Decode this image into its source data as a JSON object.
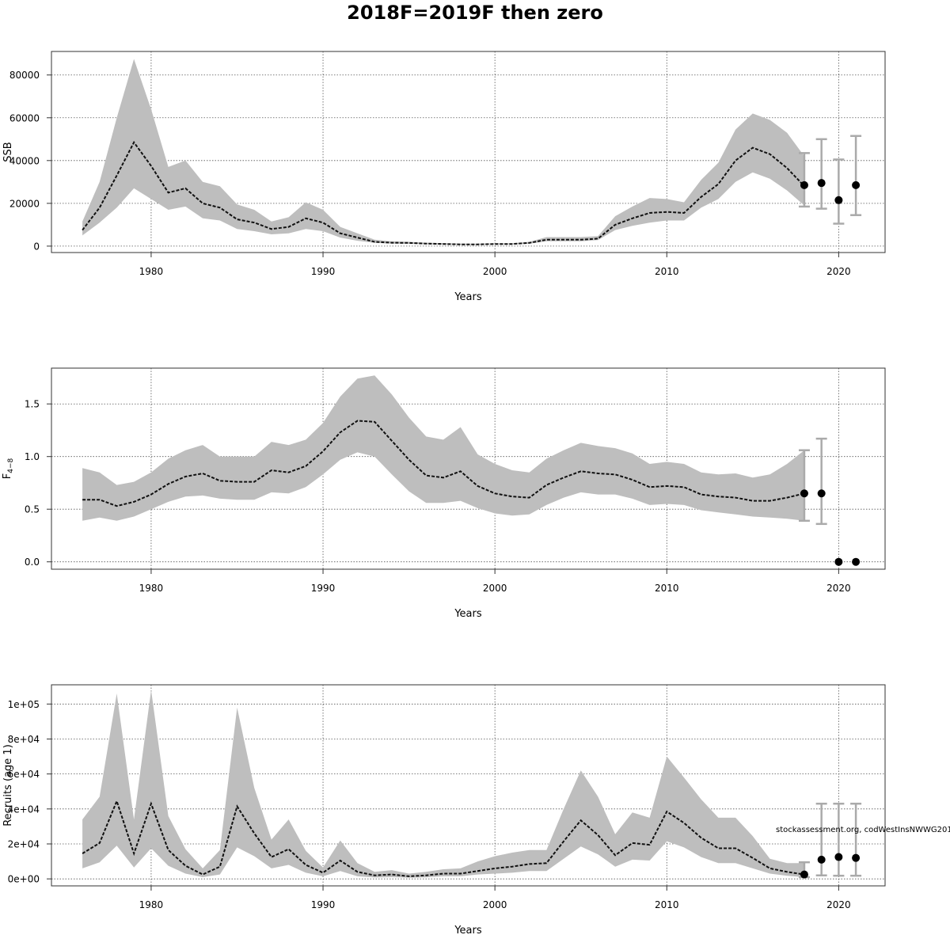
{
  "figure": {
    "title": "2018F=2019F then zero",
    "credit": "stockassessment.org, codWestInsNWWG201"
  },
  "chart_data": [
    {
      "type": "area",
      "name": "ssb",
      "title": "",
      "xlabel": "Years",
      "ylabel": "SSB",
      "xlim": [
        1974.2,
        2022.7
      ],
      "ylim": [
        -3000,
        91000
      ],
      "xticks": [
        1980,
        1990,
        2000,
        2010,
        2020
      ],
      "xtick_labels": [
        "1980",
        "1990",
        "2000",
        "2010",
        "2020"
      ],
      "yticks": [
        0,
        20000,
        40000,
        60000,
        80000
      ],
      "ytick_labels": [
        "0",
        "20000",
        "40000",
        "60000",
        "80000"
      ],
      "grid": true,
      "x": [
        1976,
        1977,
        1978,
        1979,
        1980,
        1981,
        1982,
        1983,
        1984,
        1985,
        1986,
        1987,
        1988,
        1989,
        1990,
        1991,
        1992,
        1993,
        1994,
        1995,
        1996,
        1997,
        1998,
        1999,
        2000,
        2001,
        2002,
        2003,
        2004,
        2005,
        2006,
        2007,
        2008,
        2009,
        2010,
        2011,
        2012,
        2013,
        2014,
        2015,
        2016,
        2017,
        2018
      ],
      "estimate": [
        7500,
        18000,
        33000,
        48500,
        37500,
        25000,
        27000,
        20000,
        18000,
        12500,
        11000,
        8000,
        9000,
        13000,
        11000,
        6000,
        4000,
        2000,
        1600,
        1500,
        1200,
        1000,
        800,
        800,
        1000,
        1000,
        1500,
        3000,
        3000,
        3000,
        3500,
        10000,
        13000,
        15500,
        16000,
        15500,
        23000,
        29000,
        40000,
        46000,
        43000,
        36500,
        28000
      ],
      "lower": [
        5000,
        11000,
        18000,
        27000,
        22000,
        17000,
        18500,
        13000,
        12000,
        8000,
        7000,
        5500,
        6000,
        8000,
        7000,
        4000,
        2500,
        1500,
        1200,
        1100,
        900,
        700,
        600,
        600,
        800,
        800,
        1100,
        2300,
        2300,
        2300,
        2800,
        7500,
        9500,
        11000,
        12000,
        12000,
        18000,
        22000,
        30000,
        34500,
        31500,
        26000,
        19000
      ],
      "upper": [
        11500,
        30000,
        60000,
        87500,
        64000,
        37000,
        40000,
        30000,
        28000,
        19500,
        17000,
        11500,
        13500,
        20500,
        17000,
        9000,
        6000,
        3000,
        2200,
        2000,
        1600,
        1400,
        1200,
        1100,
        1300,
        1300,
        2000,
        4200,
        4200,
        4200,
        4700,
        14000,
        18500,
        22500,
        22000,
        20500,
        31000,
        39000,
        54500,
        62000,
        59000,
        53000,
        42000
      ],
      "forecast": {
        "years": [
          2018,
          2019,
          2020,
          2021
        ],
        "median": [
          28500,
          29500,
          21500,
          28500
        ],
        "low": [
          18500,
          17500,
          10500,
          14500
        ],
        "high": [
          43500,
          50000,
          40500,
          51500
        ]
      }
    },
    {
      "type": "area",
      "name": "fbar",
      "title": "",
      "xlabel": "Years",
      "ylabel_main": "F",
      "ylabel_sub": "4−8",
      "xlim": [
        1974.2,
        2022.7
      ],
      "ylim": [
        -0.07,
        1.84
      ],
      "xticks": [
        1980,
        1990,
        2000,
        2010,
        2020
      ],
      "xtick_labels": [
        "1980",
        "1990",
        "2000",
        "2010",
        "2020"
      ],
      "yticks": [
        0,
        0.5,
        1,
        1.5
      ],
      "ytick_labels": [
        "0.0",
        "0.5",
        "1.0",
        "1.5"
      ],
      "grid": true,
      "x": [
        1976,
        1977,
        1978,
        1979,
        1980,
        1981,
        1982,
        1983,
        1984,
        1985,
        1986,
        1987,
        1988,
        1989,
        1990,
        1991,
        1992,
        1993,
        1994,
        1995,
        1996,
        1997,
        1998,
        1999,
        2000,
        2001,
        2002,
        2003,
        2004,
        2005,
        2006,
        2007,
        2008,
        2009,
        2010,
        2011,
        2012,
        2013,
        2014,
        2015,
        2016,
        2017,
        2018
      ],
      "estimate": [
        0.59,
        0.59,
        0.53,
        0.57,
        0.64,
        0.74,
        0.81,
        0.84,
        0.77,
        0.76,
        0.76,
        0.87,
        0.85,
        0.91,
        1.05,
        1.23,
        1.34,
        1.33,
        1.15,
        0.97,
        0.82,
        0.8,
        0.86,
        0.72,
        0.65,
        0.62,
        0.61,
        0.73,
        0.8,
        0.86,
        0.84,
        0.83,
        0.78,
        0.71,
        0.72,
        0.71,
        0.64,
        0.62,
        0.61,
        0.58,
        0.58,
        0.61,
        0.65
      ],
      "lower": [
        0.39,
        0.42,
        0.39,
        0.43,
        0.5,
        0.57,
        0.62,
        0.63,
        0.6,
        0.59,
        0.59,
        0.66,
        0.65,
        0.71,
        0.83,
        0.97,
        1.04,
        1.0,
        0.83,
        0.67,
        0.56,
        0.56,
        0.58,
        0.51,
        0.46,
        0.44,
        0.45,
        0.54,
        0.61,
        0.66,
        0.64,
        0.64,
        0.6,
        0.54,
        0.55,
        0.54,
        0.49,
        0.47,
        0.45,
        0.43,
        0.42,
        0.41,
        0.39
      ],
      "upper": [
        0.89,
        0.85,
        0.73,
        0.76,
        0.85,
        0.98,
        1.06,
        1.11,
        1.0,
        1.0,
        1.0,
        1.14,
        1.11,
        1.16,
        1.32,
        1.57,
        1.74,
        1.77,
        1.59,
        1.37,
        1.19,
        1.16,
        1.28,
        1.02,
        0.93,
        0.87,
        0.85,
        0.98,
        1.06,
        1.13,
        1.1,
        1.08,
        1.03,
        0.93,
        0.95,
        0.93,
        0.85,
        0.83,
        0.84,
        0.8,
        0.83,
        0.93,
        1.06
      ],
      "forecast": {
        "years": [
          2018,
          2019,
          2020,
          2021
        ],
        "median": [
          0.65,
          0.65,
          0,
          0
        ],
        "low": [
          0.39,
          0.36,
          0,
          0
        ],
        "high": [
          1.06,
          1.17,
          0,
          0
        ]
      }
    },
    {
      "type": "area",
      "name": "recruits",
      "title": "",
      "xlabel": "Years",
      "ylabel": "Recruits (age 1)",
      "xlim": [
        1974.2,
        2022.7
      ],
      "ylim": [
        -4000,
        111000
      ],
      "xticks": [
        1980,
        1990,
        2000,
        2010,
        2020
      ],
      "xtick_labels": [
        "1980",
        "1990",
        "2000",
        "2010",
        "2020"
      ],
      "yticks": [
        0,
        20000,
        40000,
        60000,
        80000,
        100000
      ],
      "ytick_labels": [
        "0e+00",
        "2e+04",
        "4e+04",
        "6e+04",
        "8e+04",
        "1e+05"
      ],
      "grid": true,
      "x": [
        1976,
        1977,
        1978,
        1979,
        1980,
        1981,
        1982,
        1983,
        1984,
        1985,
        1986,
        1987,
        1988,
        1989,
        1990,
        1991,
        1992,
        1993,
        1994,
        1995,
        1996,
        1997,
        1998,
        1999,
        2000,
        2001,
        2002,
        2003,
        2004,
        2005,
        2006,
        2007,
        2008,
        2009,
        2010,
        2011,
        2012,
        2013,
        2014,
        2015,
        2016,
        2017,
        2018
      ],
      "estimate": [
        14500,
        20500,
        44500,
        14500,
        43000,
        16500,
        7500,
        2500,
        7000,
        41500,
        26000,
        12500,
        17000,
        8000,
        3500,
        10500,
        4000,
        2000,
        2500,
        1500,
        2000,
        3000,
        3000,
        4500,
        6000,
        7000,
        8500,
        9000,
        21500,
        33500,
        25000,
        13500,
        20500,
        19500,
        38500,
        32000,
        23500,
        17500,
        17500,
        12000,
        6000,
        4000,
        2500
      ],
      "lower": [
        6000,
        9500,
        19000,
        6500,
        17500,
        7500,
        3000,
        1000,
        2500,
        18000,
        13000,
        6000,
        8000,
        3500,
        1500,
        4500,
        1500,
        800,
        1000,
        700,
        900,
        1500,
        1500,
        2500,
        3000,
        3500,
        4500,
        4500,
        11500,
        18500,
        14000,
        7000,
        11000,
        10500,
        21500,
        18000,
        12500,
        9000,
        9000,
        6000,
        3000,
        1800,
        1000
      ],
      "upper": [
        34000,
        47000,
        106000,
        34000,
        108000,
        36000,
        17000,
        6000,
        16500,
        98000,
        52000,
        22500,
        34000,
        16000,
        6500,
        22000,
        9000,
        4000,
        5000,
        3000,
        4000,
        5500,
        6000,
        10000,
        13000,
        15000,
        16500,
        16500,
        40000,
        62000,
        47000,
        25500,
        38000,
        35000,
        70000,
        58000,
        45500,
        35000,
        35000,
        24500,
        11500,
        9000,
        9000
      ],
      "forecast": {
        "years": [
          2018,
          2019,
          2020,
          2021
        ],
        "median": [
          2500,
          11000,
          12500,
          12000
        ],
        "low": [
          1000,
          2000,
          1800,
          1800
        ],
        "high": [
          9500,
          43000,
          43000,
          43000
        ]
      }
    }
  ]
}
